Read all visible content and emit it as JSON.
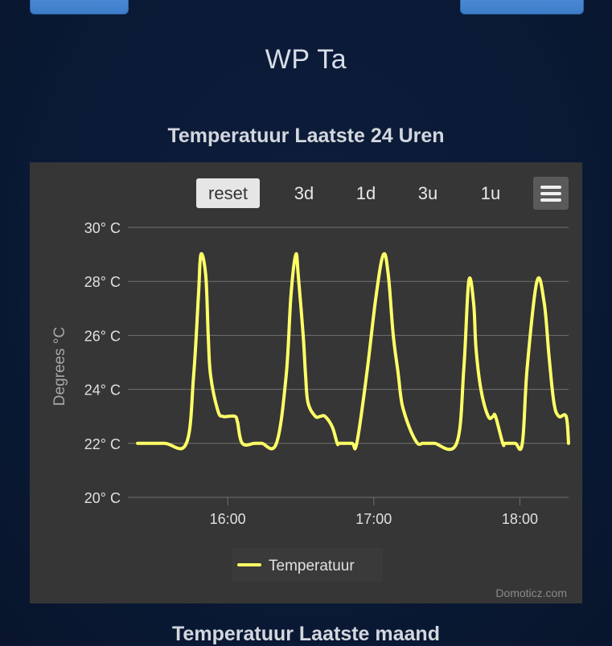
{
  "page": {
    "device_title": "WP Ta",
    "chart_title": "Temperatuur Laatste 24 Uren",
    "next_chart_title": "Temperatuur Laatste maand"
  },
  "toolbar": {
    "zoom_buttons": [
      "reset",
      "3d",
      "1d",
      "3u",
      "1u"
    ],
    "active": "reset"
  },
  "credits": "Domoticz.com",
  "colors": {
    "series": "#ffff66",
    "grid": "#707070",
    "axis_text": "#e0e0e0",
    "bg": "#363636"
  },
  "chart_data": {
    "type": "line",
    "ylabel": "Degrees °C",
    "ylim": [
      20,
      30
    ],
    "y_ticks": [
      20,
      22,
      24,
      26,
      28,
      30
    ],
    "y_tick_labels": [
      "20° C",
      "22° C",
      "24° C",
      "26° C",
      "28° C",
      "30° C"
    ],
    "x_tick_labels": [
      "16:00",
      "17:00",
      "18:00"
    ],
    "x_ticks_min": [
      960,
      1020,
      1080
    ],
    "xlim_min": [
      919,
      1100
    ],
    "x_unit": "minutes since 00:00",
    "legend": "bottom-center",
    "series": [
      {
        "name": "Temperatuur",
        "x_min": [
          923,
          934,
          943,
          946,
          948,
          949,
          951,
          952,
          953,
          956,
          958,
          960,
          963,
          964,
          966,
          971,
          974,
          980,
          984,
          986,
          988,
          989,
          991,
          992,
          993,
          996,
          998,
          1000,
          1003,
          1005,
          1006,
          1011,
          1013,
          1017,
          1021,
          1024,
          1026,
          1028,
          1030,
          1031,
          1032,
          1035,
          1038,
          1040,
          1042,
          1044,
          1045,
          1054,
          1057,
          1059,
          1061,
          1062,
          1064,
          1067,
          1069,
          1070,
          1073,
          1074,
          1078,
          1081,
          1083,
          1087,
          1090,
          1092,
          1094,
          1096,
          1099,
          1100
        ],
        "y": [
          22,
          22,
          22,
          24.5,
          27.5,
          29,
          28.2,
          26,
          24.5,
          23.2,
          23,
          23,
          23,
          22.8,
          22,
          22,
          22,
          22,
          24.5,
          27.5,
          29,
          28.2,
          26,
          24.5,
          23.5,
          23,
          23,
          23,
          22.6,
          22,
          22,
          22,
          22,
          24.5,
          27.5,
          29,
          28.2,
          26,
          24.6,
          23.8,
          23.3,
          22.5,
          22,
          22,
          22,
          22,
          22,
          22,
          24.8,
          28,
          27.2,
          25.5,
          24,
          23,
          23,
          23,
          22,
          22,
          22,
          22,
          24.8,
          28,
          27.2,
          25.2,
          23.5,
          23,
          23,
          22
        ]
      }
    ]
  }
}
